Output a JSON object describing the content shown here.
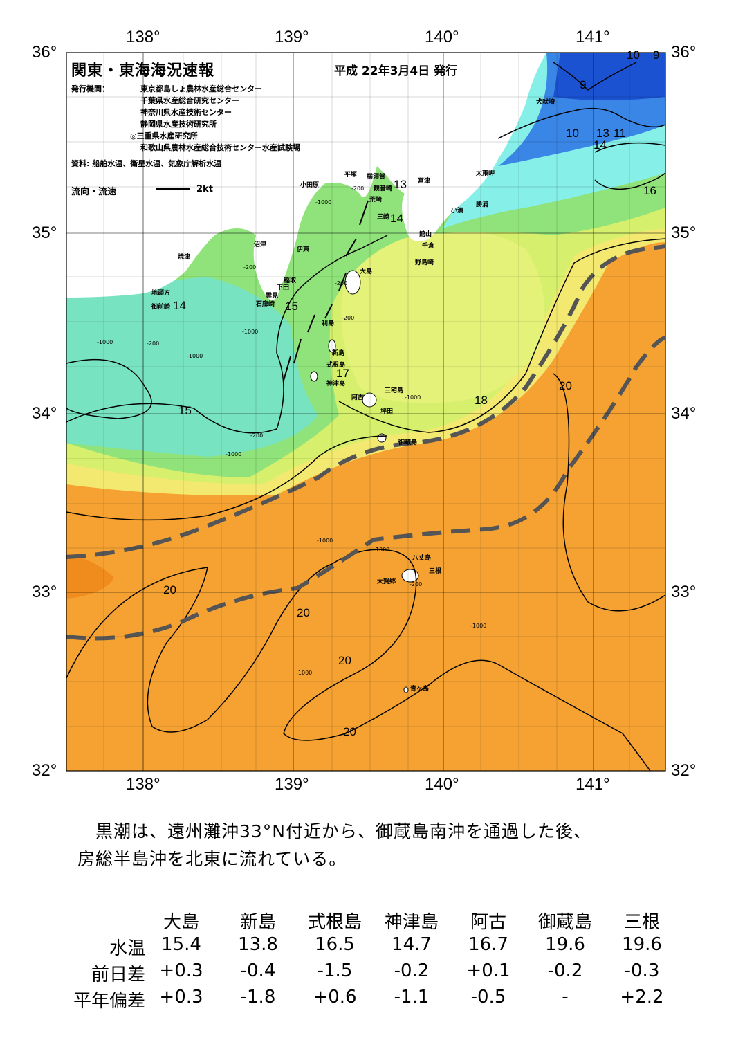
{
  "map": {
    "title": "関東・東海海況速報",
    "issue_date": "平成 22年3月4日 発行",
    "issuer_label": "発行機関：",
    "issuers": [
      "東京都島しょ農林水産総合センター",
      "千葉県水産総合研究センター",
      "神奈川県水産技術センター",
      "静岡県水産技術研究所",
      "◎三重県水産研究所",
      "和歌山県農林水産総合技術センター水産試験場"
    ],
    "sources": "資料: 船舶水温、衛星水温、気象庁解析水温",
    "flow_legend": "流向・流速",
    "flow_unit": "2kt",
    "lon_labels": [
      "138°",
      "139°",
      "140°",
      "141°"
    ],
    "lat_labels": [
      "36°",
      "35°",
      "34°",
      "33°",
      "32°"
    ],
    "place_names": {
      "inubosaki": "犬吠埼",
      "taitozaki": "太東岬",
      "katsuura": "勝浦",
      "kominato": "小湊",
      "tateyama": "館山",
      "chikura": "千倉",
      "nojimazaki": "野島崎",
      "futtsu": "富津",
      "yokosuka": "横須賀",
      "kannonzaki": "観音崎",
      "hiratsuka": "平塚",
      "arasaki": "荒崎",
      "misaki": "三崎",
      "odawara": "小田原",
      "numazu": "沼津",
      "ito": "伊東",
      "inatori": "稲取",
      "shimoda": "下田",
      "kumomi": "雲見",
      "irozaki": "石廊崎",
      "yaizu": "焼津",
      "jitogata": "地頭方",
      "omaezaki": "御前崎",
      "oshima": "大島",
      "toshima": "利島",
      "niijima": "新島",
      "shikinejima": "式根島",
      "kozushima": "神津島",
      "ako": "阿古",
      "miyakejima": "三宅島",
      "tsubota": "坪田",
      "mikurajima": "御蔵島",
      "hachijojima": "八丈島",
      "mitsune": "三根",
      "okago": "大賀郷",
      "aogashima": "青ヶ島"
    },
    "isotherm_labels": [
      "9",
      "10",
      "9",
      "10",
      "13",
      "11",
      "14",
      "16",
      "13",
      "14",
      "14",
      "15",
      "17",
      "15",
      "18",
      "20",
      "20",
      "20",
      "20",
      "20"
    ],
    "depth_labels": [
      "-200",
      "-1000",
      "-200",
      "-1000",
      "-1000",
      "-200",
      "-200",
      "-1000",
      "-200",
      "-1000",
      "-1000",
      "-200",
      "-1000",
      "-1000",
      "-1000",
      "-200",
      "-1000"
    ],
    "colors": {
      "warm": "#f5a233",
      "warm_dark": "#f08c1e",
      "yellow": "#f1f27a",
      "yellowgreen": "#d0ee6e",
      "green": "#86e07c",
      "teal": "#6fe0b8",
      "cyan": "#7ff0ea",
      "blue": "#3a86e6",
      "deep_blue": "#1b52d2",
      "kuroshio_path": "#555555"
    }
  },
  "summary": {
    "line1": "黒潮は、遠州灘沖33°N付近から、御蔵島南沖を通過した後、",
    "line2": "房総半島沖を北東に流れている。"
  },
  "table": {
    "headers": [
      "大島",
      "新島",
      "式根島",
      "神津島",
      "阿古",
      "御蔵島",
      "三根"
    ],
    "rows": [
      {
        "label": "水温",
        "values": [
          "15.4",
          "13.8",
          "16.5",
          "14.7",
          "16.7",
          "19.6",
          "19.6"
        ]
      },
      {
        "label": "前日差",
        "values": [
          "+0.3",
          "-0.4",
          "-1.5",
          "-0.2",
          "+0.1",
          "-0.2",
          "-0.3"
        ]
      },
      {
        "label": "平年偏差",
        "values": [
          "+0.3",
          "-1.8",
          "+0.6",
          "-1.1",
          "-0.5",
          "-",
          "+2.2"
        ]
      }
    ]
  }
}
